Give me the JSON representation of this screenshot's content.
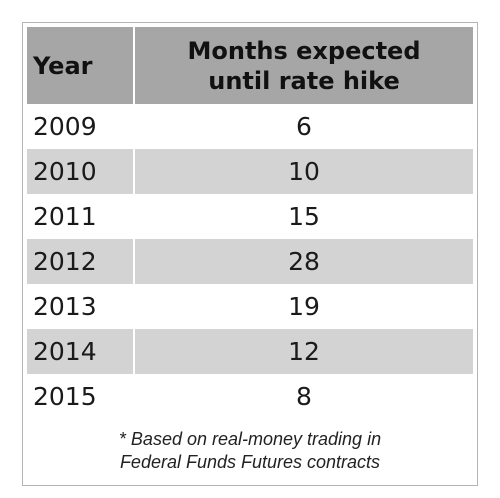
{
  "chart_data": {
    "type": "table",
    "columns": [
      "Year",
      "Months expected until rate hike"
    ],
    "header": {
      "year": "Year",
      "months_line1": "Months expected",
      "months_line2": "until rate hike"
    },
    "rows": [
      {
        "year": "2009",
        "value": 6
      },
      {
        "year": "2010",
        "value": 10
      },
      {
        "year": "2011",
        "value": 15
      },
      {
        "year": "2012",
        "value": 28
      },
      {
        "year": "2013",
        "value": 19
      },
      {
        "year": "2014",
        "value": 12
      },
      {
        "year": "2015",
        "value": 8
      }
    ],
    "footnote": {
      "line1": "* Based on real-money trading in",
      "line2": "Federal Funds Futures contracts"
    }
  },
  "colors": {
    "header_bg": "#a6a6a6",
    "shaded_row_bg": "#d3d3d3"
  }
}
